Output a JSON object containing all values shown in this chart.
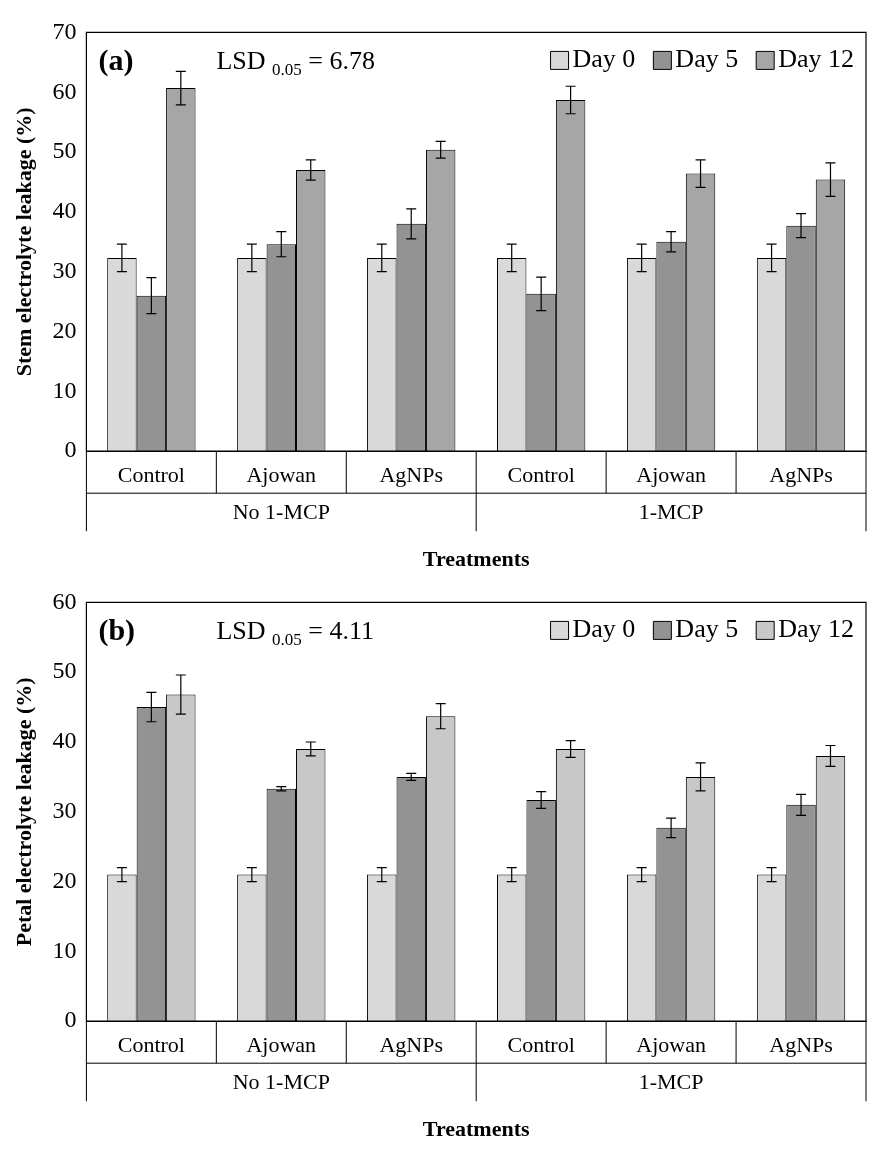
{
  "chart_data": [
    {
      "type": "bar",
      "title": "(a)",
      "xlabel": "Treatments",
      "ylabel": "Stem electrolyte leakage (%)",
      "annotations": [
        "LSD $_{0.05}$ = 6.78",
        "No 1-MCP",
        "1-MCP"
      ],
      "categories": [
        "Control",
        "Ajowan",
        "AgNPs",
        "Control",
        "Ajowan",
        "AgNPs"
      ],
      "series": [
        {
          "name": "Day 0",
          "color": "#d9d9d9",
          "values": [
            32.3,
            32.3,
            32.3,
            32.3,
            32.3,
            32.3
          ],
          "errors": [
            2.3,
            2.3,
            2.3,
            2.3,
            2.3,
            2.3
          ]
        },
        {
          "name": "Day 5",
          "color": "#939393",
          "values": [
            26,
            34.6,
            38,
            26.3,
            35,
            37.7
          ],
          "errors": [
            3,
            2.1,
            2.5,
            2.8,
            1.7,
            2
          ]
        },
        {
          "name": "Day 12",
          "color": "#a6a6a6",
          "values": [
            60.7,
            47,
            50.4,
            58.7,
            46.4,
            45.4
          ],
          "errors": [
            2.8,
            1.7,
            1.4,
            2.3,
            2.3,
            2.8
          ]
        }
      ],
      "ylim": [
        0,
        70
      ],
      "yticks": [
        0,
        10,
        20,
        30,
        40,
        50,
        60,
        70
      ],
      "grid": false,
      "legend": "top right"
    },
    {
      "type": "bar",
      "title": "(b)",
      "xlabel": "Treatments",
      "ylabel": "Petal electrolyte leakage (%)",
      "annotations": [
        "LSD $_{0.05}$ = 4.11",
        "No 1-MCP",
        "1-MCP"
      ],
      "categories": [
        "Control",
        "Ajowan",
        "AgNPs",
        "Control",
        "Ajowan",
        "AgNPs"
      ],
      "series": [
        {
          "name": "Day 0",
          "color": "#d9d9d9",
          "values": [
            21,
            21,
            21,
            21,
            21,
            21
          ],
          "errors": [
            1,
            1,
            1,
            1,
            1,
            1
          ]
        },
        {
          "name": "Day 5",
          "color": "#939393",
          "values": [
            45,
            33.3,
            35,
            31.7,
            27.7,
            31
          ],
          "errors": [
            2.1,
            0.3,
            0.5,
            1.2,
            1.4,
            1.5
          ]
        },
        {
          "name": "Day 12",
          "color": "#c8c8c8",
          "values": [
            46.8,
            39,
            43.7,
            39,
            35,
            38
          ],
          "errors": [
            2.8,
            1,
            1.8,
            1.2,
            2,
            1.5
          ]
        }
      ],
      "ylim": [
        0,
        60
      ],
      "yticks": [
        0,
        10,
        20,
        30,
        40,
        50,
        60
      ],
      "grid": false,
      "legend": "top right"
    }
  ]
}
